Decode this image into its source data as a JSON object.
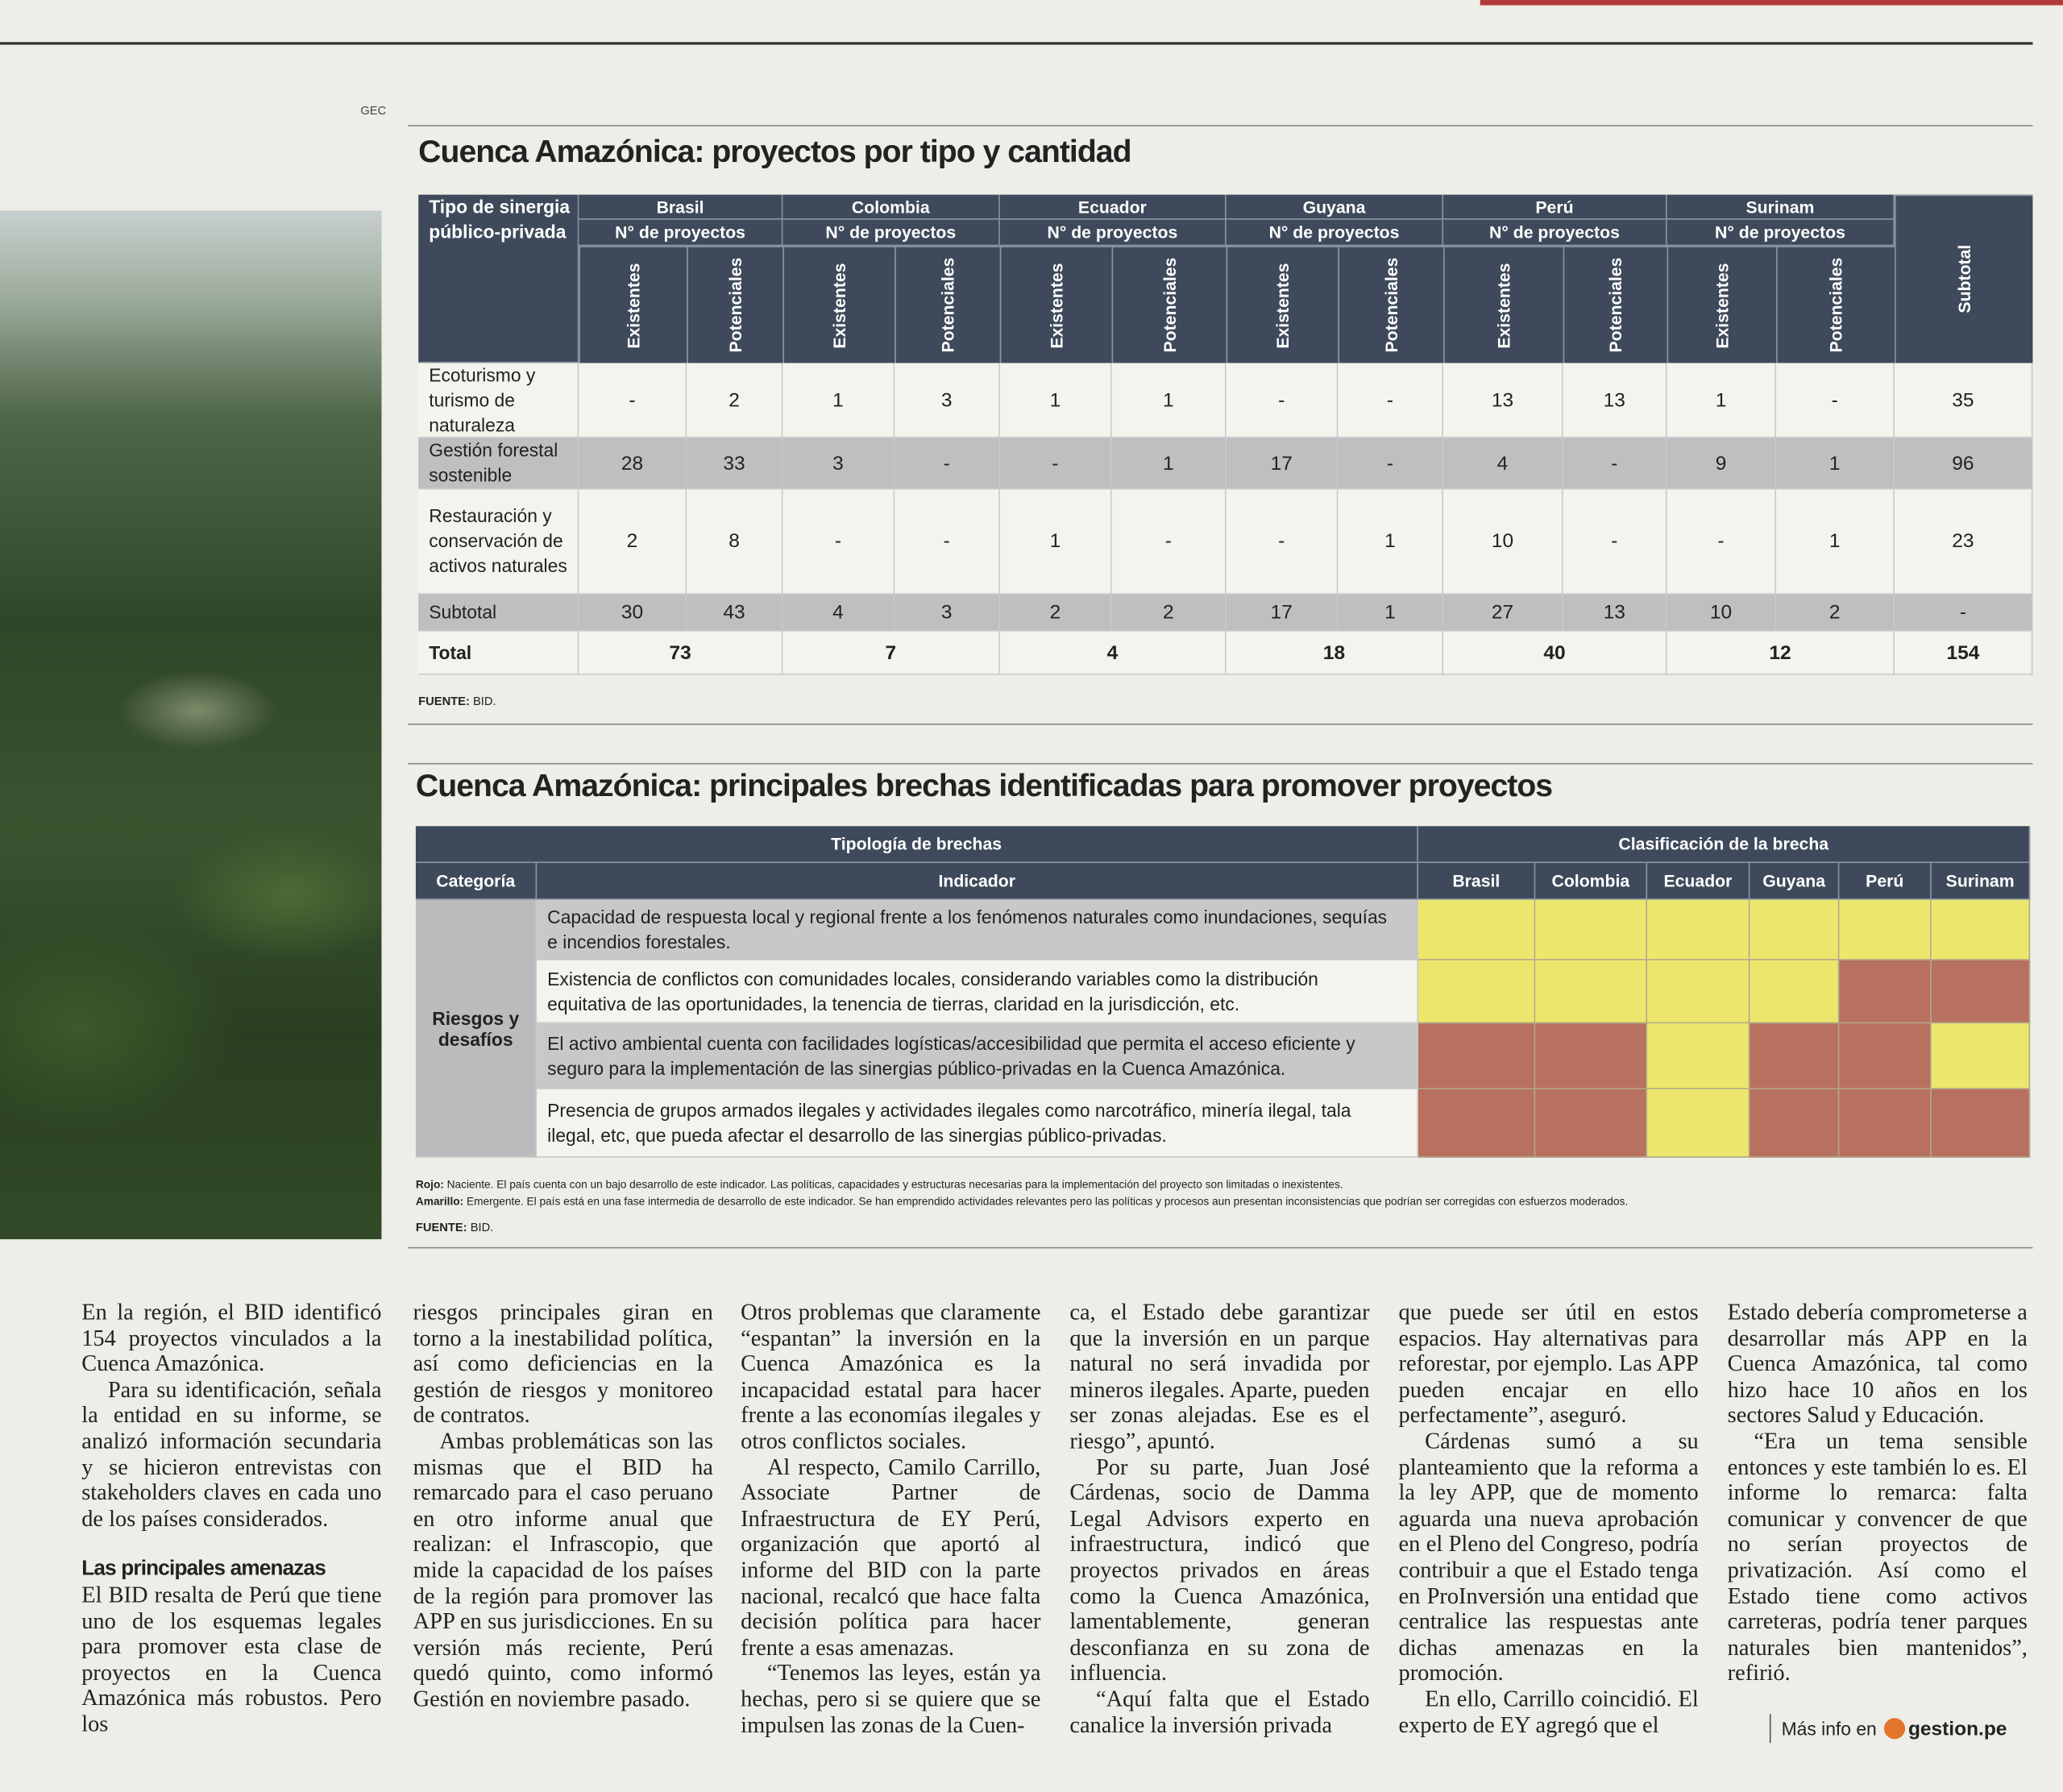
{
  "credit": "GEC",
  "table1": {
    "title": "Cuenca Amazónica: proyectos por tipo y cantidad",
    "corner": "Tipo de sinergia público-privada",
    "countries": [
      "Brasil",
      "Colombia",
      "Ecuador",
      "Guyana",
      "Perú",
      "Surinam"
    ],
    "count_label": "N° de proyectos",
    "existing_label": "Existentes",
    "potential_label": "Potenciales",
    "subtotal_label": "Subtotal",
    "rows": [
      {
        "label": "Ecoturismo y turismo de naturaleza",
        "cells": [
          "-",
          2,
          1,
          3,
          1,
          1,
          "-",
          "-",
          13,
          13,
          1,
          "-",
          35
        ]
      },
      {
        "label": "Gestión forestal sostenible",
        "cells": [
          28,
          33,
          3,
          "-",
          "-",
          1,
          17,
          "-",
          4,
          "-",
          9,
          1,
          96
        ]
      },
      {
        "label": "Restauración y conservación de activos naturales",
        "cells": [
          2,
          8,
          "-",
          "-",
          1,
          "-",
          "-",
          1,
          10,
          "-",
          "-",
          1,
          23
        ]
      }
    ],
    "subtotal_row": {
      "label": "Subtotal",
      "cells": [
        30,
        43,
        4,
        3,
        2,
        2,
        17,
        1,
        27,
        13,
        10,
        2,
        "-"
      ]
    },
    "total_row": {
      "label": "Total",
      "cells": [
        73,
        7,
        4,
        18,
        40,
        12,
        154
      ]
    },
    "source_label": "FUENTE:",
    "source": "BID."
  },
  "table2": {
    "title": "Cuenca Amazónica: principales brechas identificadas para promover proyectos",
    "group_left": "Tipología de brechas",
    "group_right": "Clasificación de la brecha",
    "category_header": "Categoría",
    "indicator_header": "Indicador",
    "countries": [
      "Brasil",
      "Colombia",
      "Ecuador",
      "Guyana",
      "Perú",
      "Surinam"
    ],
    "category": "Riesgos y desafíos",
    "rows": [
      {
        "indicator": "Capacidad de respuesta local y regional frente a los fenómenos naturales como inundaciones, sequías e incendios forestales.",
        "ratings": [
          "#ece76c",
          "#ece76c",
          "#ece76c",
          "#ece76c",
          "#ece76c",
          "#ece76c"
        ]
      },
      {
        "indicator": "Existencia de conflictos con comunidades locales, considerando variables como la distribución equitativa de las oportunidades, la tenencia de tierras, claridad en la jurisdicción, etc.",
        "ratings": [
          "#ece76c",
          "#ece76c",
          "#ece76c",
          "#ece76c",
          "#b8705f",
          "#b8705f"
        ]
      },
      {
        "indicator": "El activo ambiental cuenta con facilidades logísticas/accesibilidad que permita el acceso eficiente y seguro para la implementación de las sinergias público-privadas en la Cuenca Amazónica.",
        "ratings": [
          "#b8705f",
          "#b8705f",
          "#ece76c",
          "#b8705f",
          "#b8705f",
          "#ece76c"
        ]
      },
      {
        "indicator": "Presencia de grupos armados ilegales y actividades ilegales como narcotráfico, minería ilegal, tala ilegal, etc, que pueda afectar el desarrollo de las sinergias público-privadas.",
        "ratings": [
          "#b8705f",
          "#b8705f",
          "#ece76c",
          "#b8705f",
          "#b8705f",
          "#b8705f"
        ]
      }
    ],
    "notes": [
      {
        "label": "Rojo:",
        "text": "Naciente. El país cuenta con un bajo desarrollo de este indicador. Las políticas, capacidades y estructuras necesarias para la implementación del proyecto son limitadas o inexistentes."
      },
      {
        "label": "Amarillo:",
        "text": "Emergente. El país está en una fase intermedia de desarrollo de este indicador. Se han emprendido actividades relevantes pero las políticas y procesos aun presentan inconsistencias que podrían ser corregidas con esfuerzos moderados."
      }
    ],
    "source_label": "FUENTE:",
    "source": "BID."
  },
  "article": {
    "columns": [
      [
        {
          "p": "En la región, el BID identificó 154 proyectos vinculados a la Cuenca Amazónica."
        },
        {
          "p": "Para su identificación, señala la entidad en su informe, se analizó información secundaria y se hicieron entrevistas con stakeholders claves en cada uno de los países considerados."
        },
        {
          "heading": "Las principales amenazas"
        },
        {
          "p": "El BID resalta de Perú que tiene uno de los esquemas legales para promover esta clase de proyectos en la Cuenca Amazónica más robustos. Pero los"
        }
      ],
      [
        {
          "p": "riesgos principales giran en torno a la inestabilidad política, así como deficiencias en la gestión de riesgos y monitoreo de contratos."
        },
        {
          "p": "Ambas problemáticas son las mismas que el BID ha remarcado para el caso peruano en otro informe anual que realizan: el Infrascopio, que mide la capacidad de los países de la región para promover las APP en sus jurisdicciones. En su versión más reciente, Perú quedó quinto, como informó Gestión en noviembre pasado."
        }
      ],
      [
        {
          "p": "Otros problemas que claramente “espantan” la inversión en la Cuenca Amazónica es la incapacidad estatal para hacer frente a las economías ilegales y otros conflictos sociales."
        },
        {
          "p": "Al respecto, Camilo Carrillo, Associate Partner de Infraestructura de EY Perú, organización que aportó al informe del BID con la parte nacional, recalcó que hace falta decisión política para hacer frente a esas amenazas."
        },
        {
          "p": "“Tenemos las leyes, están ya hechas, pero si se quiere que se impulsen las zonas de la Cuen-"
        }
      ],
      [
        {
          "p": "ca, el Estado debe garantizar que la inversión en un parque natural no será invadida por mineros ilegales. Aparte, pueden ser zonas alejadas. Ese es el riesgo”, apuntó."
        },
        {
          "p": "Por su parte, Juan José Cárdenas, socio de Damma Legal Advisors experto en infraestructura, indicó que proyectos privados en áreas como la Cuenca Amazónica, lamentablemente, generan desconfianza en su zona de influencia."
        },
        {
          "p": "“Aquí falta que el Estado canalice la inversión privada"
        }
      ],
      [
        {
          "p": "que puede ser útil en estos espacios. Hay alternativas para reforestar, por ejemplo. Las APP pueden encajar en ello perfectamente”, aseguró."
        },
        {
          "p": "Cárdenas sumó a su planteamiento que la reforma a la ley APP, que de momento aguarda una nueva aprobación en el Pleno del Congreso, podría contribuir a que el Estado tenga en ProInversión una entidad que centralice las respuestas ante dichas amenazas en la promoción."
        },
        {
          "p": "En ello, Carrillo coincidió. El experto de EY agregó que el"
        }
      ],
      [
        {
          "p": "Estado debería comprometerse a desarrollar más APP en la Cuenca Amazónica, tal como hizo hace 10 años en los sectores Salud y Educación."
        },
        {
          "p": "“Era un tema sensible entonces y este también lo es. El informe lo remarca: falta comunicar y convencer de que no serían proyectos de privatización. Así como el Estado tiene como activos carreteras, podría tener parques naturales bien mantenidos”, refirió."
        }
      ]
    ]
  },
  "footer": {
    "more": "Más info en",
    "site": "gestion.pe"
  }
}
